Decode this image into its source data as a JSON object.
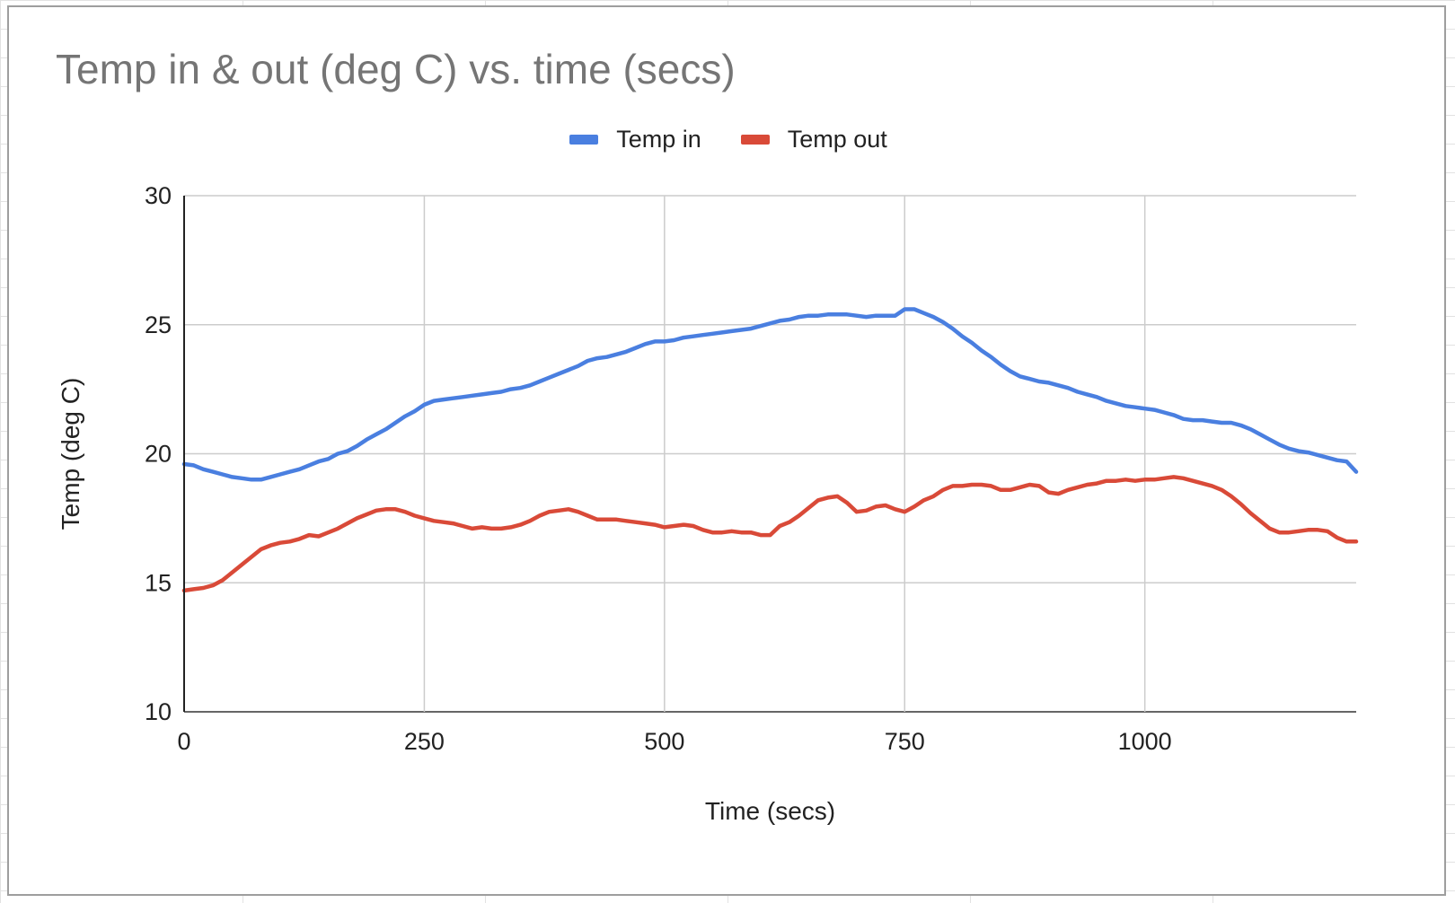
{
  "chart_data": {
    "type": "line",
    "title": "Temp in & out (deg C) vs. time (secs)",
    "xlabel": "Time (secs)",
    "ylabel": "Temp (deg C)",
    "xlim": [
      0,
      1220
    ],
    "ylim": [
      10,
      30
    ],
    "x_ticks": [
      0,
      250,
      500,
      750,
      1000
    ],
    "y_ticks": [
      10,
      15,
      20,
      25,
      30
    ],
    "grid": true,
    "legend": "top-center",
    "series": [
      {
        "name": "Temp in",
        "color": "#4a7fe0",
        "points": [
          [
            0,
            19.6
          ],
          [
            10,
            19.55
          ],
          [
            20,
            19.4
          ],
          [
            30,
            19.3
          ],
          [
            40,
            19.2
          ],
          [
            50,
            19.1
          ],
          [
            60,
            19.05
          ],
          [
            70,
            19.0
          ],
          [
            80,
            19.0
          ],
          [
            90,
            19.1
          ],
          [
            100,
            19.2
          ],
          [
            110,
            19.3
          ],
          [
            120,
            19.4
          ],
          [
            130,
            19.55
          ],
          [
            140,
            19.7
          ],
          [
            150,
            19.8
          ],
          [
            160,
            20.0
          ],
          [
            170,
            20.1
          ],
          [
            180,
            20.3
          ],
          [
            190,
            20.55
          ],
          [
            200,
            20.75
          ],
          [
            210,
            20.95
          ],
          [
            220,
            21.2
          ],
          [
            230,
            21.45
          ],
          [
            240,
            21.65
          ],
          [
            250,
            21.9
          ],
          [
            260,
            22.05
          ],
          [
            270,
            22.1
          ],
          [
            280,
            22.15
          ],
          [
            290,
            22.2
          ],
          [
            300,
            22.25
          ],
          [
            310,
            22.3
          ],
          [
            320,
            22.35
          ],
          [
            330,
            22.4
          ],
          [
            340,
            22.5
          ],
          [
            350,
            22.55
          ],
          [
            360,
            22.65
          ],
          [
            370,
            22.8
          ],
          [
            380,
            22.95
          ],
          [
            390,
            23.1
          ],
          [
            400,
            23.25
          ],
          [
            410,
            23.4
          ],
          [
            420,
            23.6
          ],
          [
            430,
            23.7
          ],
          [
            440,
            23.75
          ],
          [
            450,
            23.85
          ],
          [
            460,
            23.95
          ],
          [
            470,
            24.1
          ],
          [
            480,
            24.25
          ],
          [
            490,
            24.35
          ],
          [
            500,
            24.35
          ],
          [
            510,
            24.4
          ],
          [
            520,
            24.5
          ],
          [
            530,
            24.55
          ],
          [
            540,
            24.6
          ],
          [
            550,
            24.65
          ],
          [
            560,
            24.7
          ],
          [
            570,
            24.75
          ],
          [
            580,
            24.8
          ],
          [
            590,
            24.85
          ],
          [
            600,
            24.95
          ],
          [
            610,
            25.05
          ],
          [
            620,
            25.15
          ],
          [
            630,
            25.2
          ],
          [
            640,
            25.3
          ],
          [
            650,
            25.35
          ],
          [
            660,
            25.35
          ],
          [
            670,
            25.4
          ],
          [
            680,
            25.4
          ],
          [
            690,
            25.4
          ],
          [
            700,
            25.35
          ],
          [
            710,
            25.3
          ],
          [
            720,
            25.35
          ],
          [
            730,
            25.35
          ],
          [
            740,
            25.35
          ],
          [
            750,
            25.6
          ],
          [
            760,
            25.6
          ],
          [
            770,
            25.45
          ],
          [
            780,
            25.3
          ],
          [
            790,
            25.1
          ],
          [
            800,
            24.85
          ],
          [
            810,
            24.55
          ],
          [
            820,
            24.3
          ],
          [
            830,
            24.0
          ],
          [
            840,
            23.75
          ],
          [
            850,
            23.45
          ],
          [
            860,
            23.2
          ],
          [
            870,
            23.0
          ],
          [
            880,
            22.9
          ],
          [
            890,
            22.8
          ],
          [
            900,
            22.75
          ],
          [
            910,
            22.65
          ],
          [
            920,
            22.55
          ],
          [
            930,
            22.4
          ],
          [
            940,
            22.3
          ],
          [
            950,
            22.2
          ],
          [
            960,
            22.05
          ],
          [
            970,
            21.95
          ],
          [
            980,
            21.85
          ],
          [
            990,
            21.8
          ],
          [
            1000,
            21.75
          ],
          [
            1010,
            21.7
          ],
          [
            1020,
            21.6
          ],
          [
            1030,
            21.5
          ],
          [
            1040,
            21.35
          ],
          [
            1050,
            21.3
          ],
          [
            1060,
            21.3
          ],
          [
            1070,
            21.25
          ],
          [
            1080,
            21.2
          ],
          [
            1090,
            21.2
          ],
          [
            1100,
            21.1
          ],
          [
            1110,
            20.95
          ],
          [
            1120,
            20.75
          ],
          [
            1130,
            20.55
          ],
          [
            1140,
            20.35
          ],
          [
            1150,
            20.2
          ],
          [
            1160,
            20.1
          ],
          [
            1170,
            20.05
          ],
          [
            1180,
            19.95
          ],
          [
            1190,
            19.85
          ],
          [
            1200,
            19.75
          ],
          [
            1210,
            19.7
          ],
          [
            1220,
            19.3
          ]
        ]
      },
      {
        "name": "Temp out",
        "color": "#d94a38",
        "points": [
          [
            0,
            14.7
          ],
          [
            10,
            14.75
          ],
          [
            20,
            14.8
          ],
          [
            30,
            14.9
          ],
          [
            40,
            15.1
          ],
          [
            50,
            15.4
          ],
          [
            60,
            15.7
          ],
          [
            70,
            16.0
          ],
          [
            80,
            16.3
          ],
          [
            90,
            16.45
          ],
          [
            100,
            16.55
          ],
          [
            110,
            16.6
          ],
          [
            120,
            16.7
          ],
          [
            130,
            16.85
          ],
          [
            140,
            16.8
          ],
          [
            150,
            16.95
          ],
          [
            160,
            17.1
          ],
          [
            170,
            17.3
          ],
          [
            180,
            17.5
          ],
          [
            190,
            17.65
          ],
          [
            200,
            17.8
          ],
          [
            210,
            17.85
          ],
          [
            220,
            17.85
          ],
          [
            230,
            17.75
          ],
          [
            240,
            17.6
          ],
          [
            250,
            17.5
          ],
          [
            260,
            17.4
          ],
          [
            270,
            17.35
          ],
          [
            280,
            17.3
          ],
          [
            290,
            17.2
          ],
          [
            300,
            17.1
          ],
          [
            310,
            17.15
          ],
          [
            320,
            17.1
          ],
          [
            330,
            17.1
          ],
          [
            340,
            17.15
          ],
          [
            350,
            17.25
          ],
          [
            360,
            17.4
          ],
          [
            370,
            17.6
          ],
          [
            380,
            17.75
          ],
          [
            390,
            17.8
          ],
          [
            400,
            17.85
          ],
          [
            410,
            17.75
          ],
          [
            420,
            17.6
          ],
          [
            430,
            17.45
          ],
          [
            440,
            17.45
          ],
          [
            450,
            17.45
          ],
          [
            460,
            17.4
          ],
          [
            470,
            17.35
          ],
          [
            480,
            17.3
          ],
          [
            490,
            17.25
          ],
          [
            500,
            17.15
          ],
          [
            510,
            17.2
          ],
          [
            520,
            17.25
          ],
          [
            530,
            17.2
          ],
          [
            540,
            17.05
          ],
          [
            550,
            16.95
          ],
          [
            560,
            16.95
          ],
          [
            570,
            17.0
          ],
          [
            580,
            16.95
          ],
          [
            590,
            16.95
          ],
          [
            600,
            16.85
          ],
          [
            610,
            16.85
          ],
          [
            620,
            17.2
          ],
          [
            630,
            17.35
          ],
          [
            640,
            17.6
          ],
          [
            650,
            17.9
          ],
          [
            660,
            18.2
          ],
          [
            670,
            18.3
          ],
          [
            680,
            18.35
          ],
          [
            690,
            18.1
          ],
          [
            700,
            17.75
          ],
          [
            710,
            17.8
          ],
          [
            720,
            17.95
          ],
          [
            730,
            18.0
          ],
          [
            740,
            17.85
          ],
          [
            750,
            17.75
          ],
          [
            760,
            17.95
          ],
          [
            770,
            18.2
          ],
          [
            780,
            18.35
          ],
          [
            790,
            18.6
          ],
          [
            800,
            18.75
          ],
          [
            810,
            18.75
          ],
          [
            820,
            18.8
          ],
          [
            830,
            18.8
          ],
          [
            840,
            18.75
          ],
          [
            850,
            18.6
          ],
          [
            860,
            18.6
          ],
          [
            870,
            18.7
          ],
          [
            880,
            18.8
          ],
          [
            890,
            18.75
          ],
          [
            900,
            18.5
          ],
          [
            910,
            18.45
          ],
          [
            920,
            18.6
          ],
          [
            930,
            18.7
          ],
          [
            940,
            18.8
          ],
          [
            950,
            18.85
          ],
          [
            960,
            18.95
          ],
          [
            970,
            18.95
          ],
          [
            980,
            19.0
          ],
          [
            990,
            18.95
          ],
          [
            1000,
            19.0
          ],
          [
            1010,
            19.0
          ],
          [
            1020,
            19.05
          ],
          [
            1030,
            19.1
          ],
          [
            1040,
            19.05
          ],
          [
            1050,
            18.95
          ],
          [
            1060,
            18.85
          ],
          [
            1070,
            18.75
          ],
          [
            1080,
            18.6
          ],
          [
            1090,
            18.35
          ],
          [
            1100,
            18.05
          ],
          [
            1110,
            17.7
          ],
          [
            1120,
            17.4
          ],
          [
            1130,
            17.1
          ],
          [
            1140,
            16.95
          ],
          [
            1150,
            16.95
          ],
          [
            1160,
            17.0
          ],
          [
            1170,
            17.05
          ],
          [
            1180,
            17.05
          ],
          [
            1190,
            17.0
          ],
          [
            1200,
            16.75
          ],
          [
            1210,
            16.6
          ],
          [
            1220,
            16.6
          ]
        ]
      }
    ]
  }
}
